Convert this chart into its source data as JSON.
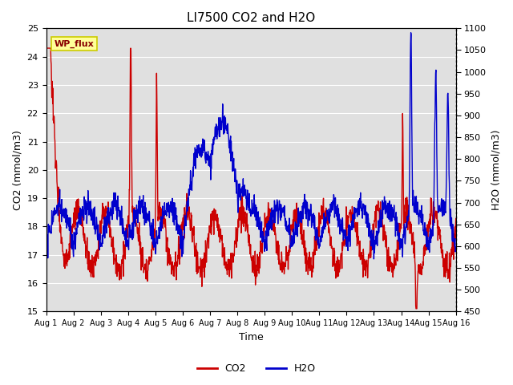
{
  "title": "LI7500 CO2 and H2O",
  "xlabel": "Time",
  "ylabel_left": "CO2 (mmol/m3)",
  "ylabel_right": "H2O (mmol/m3)",
  "co2_ylim": [
    15.0,
    25.0
  ],
  "h2o_ylim": [
    450,
    1100
  ],
  "co2_yticks": [
    15.0,
    16.0,
    17.0,
    18.0,
    19.0,
    20.0,
    21.0,
    22.0,
    23.0,
    24.0,
    25.0
  ],
  "h2o_yticks": [
    450,
    500,
    550,
    600,
    650,
    700,
    750,
    800,
    850,
    900,
    950,
    1000,
    1050,
    1100
  ],
  "xtick_labels": [
    "Aug 1",
    "Aug 2",
    "Aug 3",
    "Aug 4",
    "Aug 5",
    "Aug 6",
    "Aug 7",
    "Aug 8",
    "Aug 9",
    "Aug 10",
    "Aug 11",
    "Aug 12",
    "Aug 13",
    "Aug 14",
    "Aug 15",
    "Aug 16"
  ],
  "co2_color": "#cc0000",
  "h2o_color": "#0000cc",
  "background_color": "#e0e0e0",
  "annotation_text": "WP_flux",
  "annotation_bg": "#ffff99",
  "annotation_border": "#cccc00",
  "linewidth": 1.0,
  "figsize": [
    6.4,
    4.8
  ],
  "dpi": 100
}
